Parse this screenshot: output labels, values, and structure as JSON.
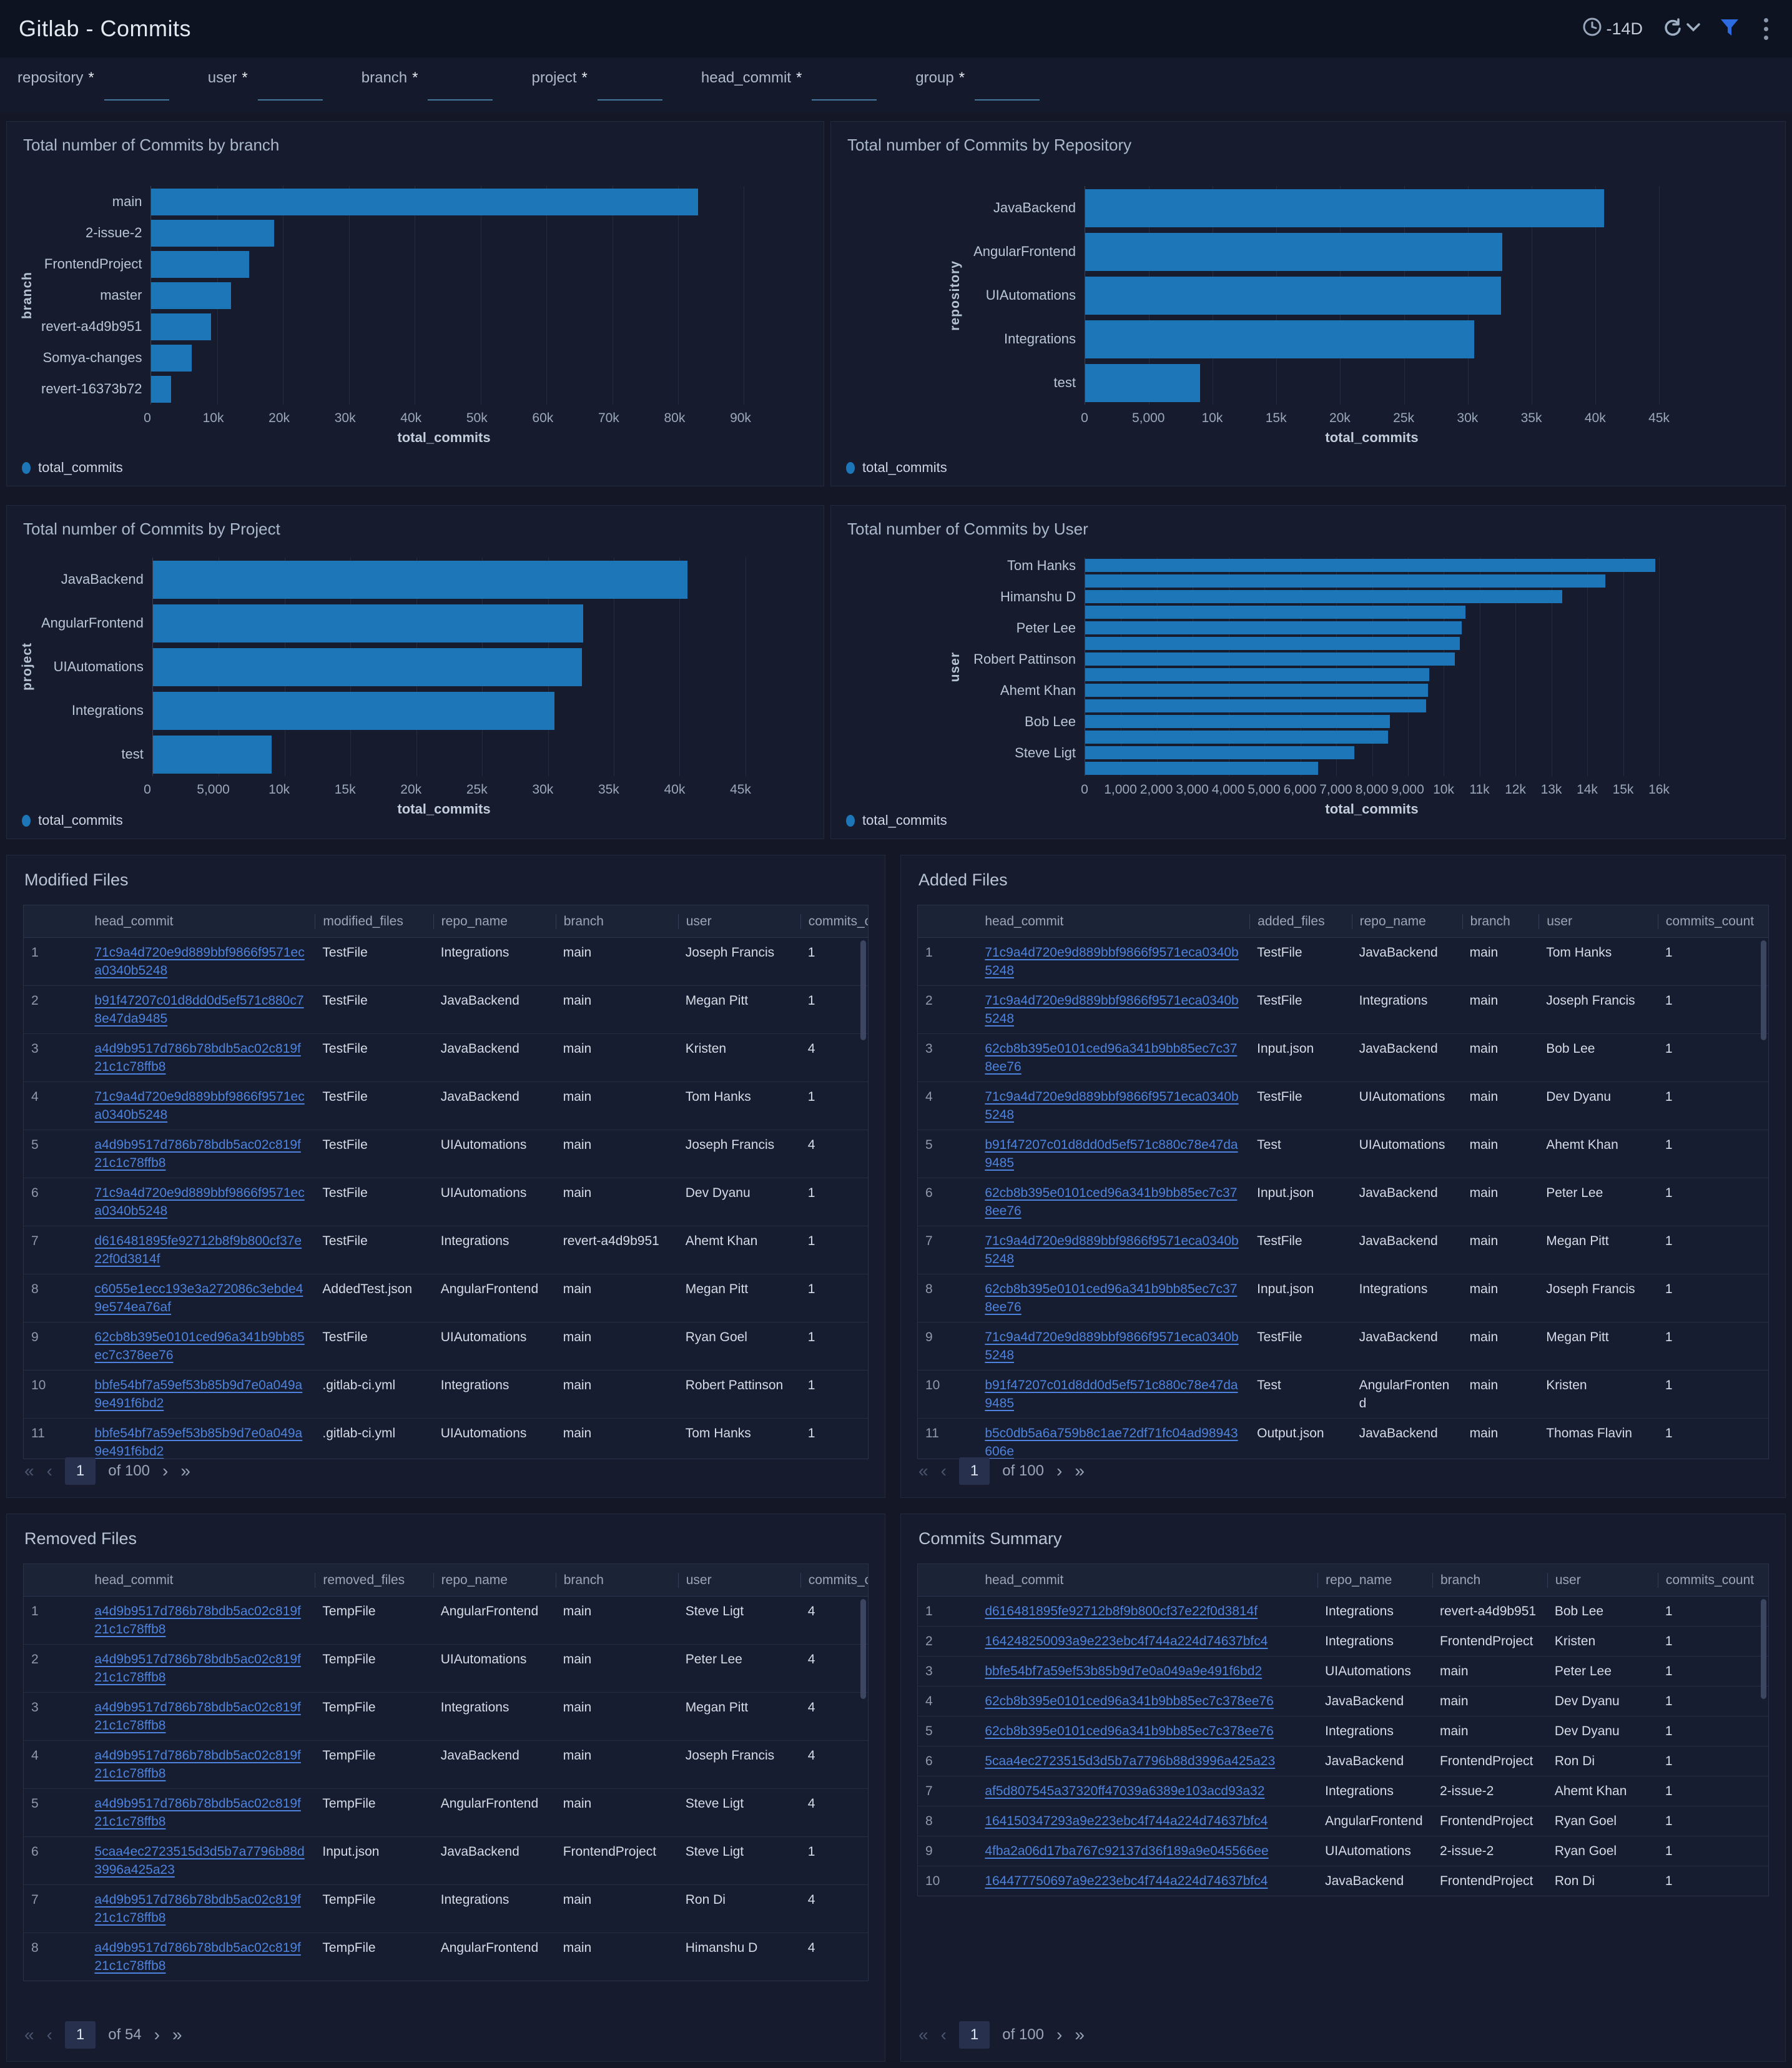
{
  "header": {
    "title": "Gitlab - Commits",
    "time_range": "-14D"
  },
  "filters": [
    {
      "label": "repository",
      "required": "*",
      "value": ""
    },
    {
      "label": "user",
      "required": "*",
      "value": ""
    },
    {
      "label": "branch",
      "required": "*",
      "value": ""
    },
    {
      "label": "project",
      "required": "*",
      "value": ""
    },
    {
      "label": "head_commit",
      "required": "*",
      "value": ""
    },
    {
      "label": "group",
      "required": "*",
      "value": ""
    }
  ],
  "accent_colors": {
    "bar": "#1c76b7",
    "link": "#4d82dd",
    "filter_icon": "#2d6ce0"
  },
  "chart_data": [
    {
      "type": "bar",
      "title": "Total number of Commits by branch",
      "xlabel": "total_commits",
      "ylabel": "branch",
      "legend": "total_commits",
      "orientation": "horizontal",
      "grid": true,
      "xlim": [
        0,
        90000
      ],
      "categories": [
        "main",
        "2-issue-2",
        "FrontendProject",
        "master",
        "revert-a4d9b951",
        "Somya-changes",
        "revert-16373b72"
      ],
      "values": [
        83000,
        18600,
        14800,
        12100,
        9100,
        6100,
        3000
      ],
      "tick_labels": [
        "0",
        "10k",
        "20k",
        "30k",
        "40k",
        "50k",
        "60k",
        "70k",
        "80k",
        "90k"
      ],
      "tick_values": [
        0,
        10000,
        20000,
        30000,
        40000,
        50000,
        60000,
        70000,
        80000,
        90000
      ]
    },
    {
      "type": "bar",
      "title": "Total number of Commits by Repository",
      "xlabel": "total_commits",
      "ylabel": "repository",
      "legend": "total_commits",
      "orientation": "horizontal",
      "grid": true,
      "xlim": [
        0,
        45000
      ],
      "categories": [
        "JavaBackend",
        "AngularFrontend",
        "UIAutomations",
        "Integrations",
        "test"
      ],
      "values": [
        40700,
        32700,
        32600,
        30500,
        9000
      ],
      "tick_labels": [
        "0",
        "5,000",
        "10k",
        "15k",
        "20k",
        "25k",
        "30k",
        "35k",
        "40k",
        "45k"
      ],
      "tick_values": [
        0,
        5000,
        10000,
        15000,
        20000,
        25000,
        30000,
        35000,
        40000,
        45000
      ]
    },
    {
      "type": "bar",
      "title": "Total number of Commits by Project",
      "xlabel": "total_commits",
      "ylabel": "project",
      "legend": "total_commits",
      "orientation": "horizontal",
      "grid": true,
      "xlim": [
        0,
        45000
      ],
      "categories": [
        "JavaBackend",
        "AngularFrontend",
        "UIAutomations",
        "Integrations",
        "test"
      ],
      "values": [
        40600,
        32700,
        32600,
        30500,
        9000
      ],
      "tick_labels": [
        "0",
        "5,000",
        "10k",
        "15k",
        "20k",
        "25k",
        "30k",
        "35k",
        "40k",
        "45k"
      ],
      "tick_values": [
        0,
        5000,
        10000,
        15000,
        20000,
        25000,
        30000,
        35000,
        40000,
        45000
      ]
    },
    {
      "type": "bar",
      "title": "Total number of Commits by User",
      "xlabel": "total_commits",
      "ylabel": "user",
      "legend": "total_commits",
      "orientation": "horizontal",
      "grid": true,
      "xlim": [
        0,
        16000
      ],
      "categories": [
        "Tom Hanks",
        "",
        "Himanshu D",
        "",
        "Peter Lee",
        "",
        "Robert Pattinson",
        "",
        "Ahemt Khan",
        "",
        "Bob Lee",
        "",
        "Steve Ligt",
        ""
      ],
      "values": [
        15900,
        14500,
        13300,
        10600,
        10500,
        10450,
        10300,
        9600,
        9550,
        9500,
        8500,
        8450,
        7500,
        6500
      ],
      "tick_labels": [
        "0",
        "1,000",
        "2,000",
        "3,000",
        "4,000",
        "5,000",
        "6,000",
        "7,000",
        "8,000",
        "9,000",
        "10k",
        "11k",
        "12k",
        "13k",
        "14k",
        "15k",
        "16k"
      ],
      "tick_values": [
        0,
        1000,
        2000,
        3000,
        4000,
        5000,
        6000,
        7000,
        8000,
        9000,
        10000,
        11000,
        12000,
        13000,
        14000,
        15000,
        16000
      ]
    }
  ],
  "tables": {
    "modified": {
      "title": "Modified Files",
      "columns": [
        "head_commit",
        "modified_files",
        "repo_name",
        "branch",
        "user",
        "commits_count"
      ],
      "rows": [
        [
          "71c9a4d720e9d889bbf9866f9571eca0340b5248",
          "TestFile",
          "Integrations",
          "main",
          "Joseph Francis",
          "1"
        ],
        [
          "b91f47207c01d8dd0d5ef571c880c78e47da9485",
          "TestFile",
          "JavaBackend",
          "main",
          "Megan Pitt",
          "1"
        ],
        [
          "a4d9b9517d786b78bdb5ac02c819f21c1c78ffb8",
          "TestFile",
          "JavaBackend",
          "main",
          "Kristen",
          "4"
        ],
        [
          "71c9a4d720e9d889bbf9866f9571eca0340b5248",
          "TestFile",
          "JavaBackend",
          "main",
          "Tom Hanks",
          "1"
        ],
        [
          "a4d9b9517d786b78bdb5ac02c819f21c1c78ffb8",
          "TestFile",
          "UIAutomations",
          "main",
          "Joseph Francis",
          "4"
        ],
        [
          "71c9a4d720e9d889bbf9866f9571eca0340b5248",
          "TestFile",
          "UIAutomations",
          "main",
          "Dev Dyanu",
          "1"
        ],
        [
          "d616481895fe92712b8f9b800cf37e22f0d3814f",
          "TestFile",
          "Integrations",
          "revert-a4d9b951",
          "Ahemt Khan",
          "1"
        ],
        [
          "c6055e1ecc193e3a272086c3ebde49e574ea76af",
          "AddedTest.json",
          "AngularFrontend",
          "main",
          "Megan Pitt",
          "1"
        ],
        [
          "62cb8b395e0101ced96a341b9bb85ec7c378ee76",
          "TestFile",
          "UIAutomations",
          "main",
          "Ryan Goel",
          "1"
        ],
        [
          "bbfe54bf7a59ef53b85b9d7e0a049a9e491f6bd2",
          ".gitlab-ci.yml",
          "Integrations",
          "main",
          "Robert Pattinson",
          "1"
        ],
        [
          "bbfe54bf7a59ef53b85b9d7e0a049a9e491f6bd2",
          ".gitlab-ci.yml",
          "UIAutomations",
          "main",
          "Tom Hanks",
          "1"
        ]
      ],
      "pagination": {
        "page": "1",
        "of_label": "of",
        "total": "100"
      }
    },
    "added": {
      "title": "Added Files",
      "columns": [
        "head_commit",
        "added_files",
        "repo_name",
        "branch",
        "user",
        "commits_count"
      ],
      "rows": [
        [
          "71c9a4d720e9d889bbf9866f9571eca0340b5248",
          "TestFile",
          "JavaBackend",
          "main",
          "Tom Hanks",
          "1"
        ],
        [
          "71c9a4d720e9d889bbf9866f9571eca0340b5248",
          "TestFile",
          "Integrations",
          "main",
          "Joseph Francis",
          "1"
        ],
        [
          "62cb8b395e0101ced96a341b9bb85ec7c378ee76",
          "Input.json",
          "JavaBackend",
          "main",
          "Bob Lee",
          "1"
        ],
        [
          "71c9a4d720e9d889bbf9866f9571eca0340b5248",
          "TestFile",
          "UIAutomations",
          "main",
          "Dev Dyanu",
          "1"
        ],
        [
          "b91f47207c01d8dd0d5ef571c880c78e47da9485",
          "Test",
          "UIAutomations",
          "main",
          "Ahemt Khan",
          "1"
        ],
        [
          "62cb8b395e0101ced96a341b9bb85ec7c378ee76",
          "Input.json",
          "JavaBackend",
          "main",
          "Peter Lee",
          "1"
        ],
        [
          "71c9a4d720e9d889bbf9866f9571eca0340b5248",
          "TestFile",
          "JavaBackend",
          "main",
          "Megan Pitt",
          "1"
        ],
        [
          "62cb8b395e0101ced96a341b9bb85ec7c378ee76",
          "Input.json",
          "Integrations",
          "main",
          "Joseph Francis",
          "1"
        ],
        [
          "71c9a4d720e9d889bbf9866f9571eca0340b5248",
          "TestFile",
          "JavaBackend",
          "main",
          "Megan Pitt",
          "1"
        ],
        [
          "b91f47207c01d8dd0d5ef571c880c78e47da9485",
          "Test",
          "AngularFrontend",
          "main",
          "Kristen",
          "1"
        ],
        [
          "b5c0db5a6a759b8c1ae72df71fc04ad98943606e",
          "Output.json",
          "JavaBackend",
          "main",
          "Thomas Flavin",
          "1"
        ]
      ],
      "pagination": {
        "page": "1",
        "of_label": "of",
        "total": "100"
      }
    },
    "removed": {
      "title": "Removed Files",
      "columns": [
        "head_commit",
        "removed_files",
        "repo_name",
        "branch",
        "user",
        "commits_count"
      ],
      "rows": [
        [
          "a4d9b9517d786b78bdb5ac02c819f21c1c78ffb8",
          "TempFile",
          "AngularFrontend",
          "main",
          "Steve Ligt",
          "4"
        ],
        [
          "a4d9b9517d786b78bdb5ac02c819f21c1c78ffb8",
          "TempFile",
          "UIAutomations",
          "main",
          "Peter Lee",
          "4"
        ],
        [
          "a4d9b9517d786b78bdb5ac02c819f21c1c78ffb8",
          "TempFile",
          "Integrations",
          "main",
          "Megan Pitt",
          "4"
        ],
        [
          "a4d9b9517d786b78bdb5ac02c819f21c1c78ffb8",
          "TempFile",
          "JavaBackend",
          "main",
          "Joseph Francis",
          "4"
        ],
        [
          "a4d9b9517d786b78bdb5ac02c819f21c1c78ffb8",
          "TempFile",
          "AngularFrontend",
          "main",
          "Steve Ligt",
          "4"
        ],
        [
          "5caa4ec2723515d3d5b7a7796b88d3996a425a23",
          "Input.json",
          "JavaBackend",
          "FrontendProject",
          "Steve Ligt",
          "1"
        ],
        [
          "a4d9b9517d786b78bdb5ac02c819f21c1c78ffb8",
          "TempFile",
          "Integrations",
          "main",
          "Ron Di",
          "4"
        ],
        [
          "a4d9b9517d786b78bdb5ac02c819f21c1c78ffb8",
          "TempFile",
          "AngularFrontend",
          "main",
          "Himanshu D",
          "4"
        ]
      ],
      "pagination": {
        "page": "1",
        "of_label": "of",
        "total": "54"
      }
    },
    "summary": {
      "title": "Commits Summary",
      "columns": [
        "head_commit",
        "repo_name",
        "branch",
        "user",
        "commits_count"
      ],
      "rows": [
        [
          "d616481895fe92712b8f9b800cf37e22f0d3814f",
          "Integrations",
          "revert-a4d9b951",
          "Bob Lee",
          "1"
        ],
        [
          "164248250093a9e223ebc4f744a224d74637bfc4",
          "Integrations",
          "FrontendProject",
          "Kristen",
          "1"
        ],
        [
          "bbfe54bf7a59ef53b85b9d7e0a049a9e491f6bd2",
          "UIAutomations",
          "main",
          "Peter Lee",
          "1"
        ],
        [
          "62cb8b395e0101ced96a341b9bb85ec7c378ee76",
          "JavaBackend",
          "main",
          "Dev Dyanu",
          "1"
        ],
        [
          "62cb8b395e0101ced96a341b9bb85ec7c378ee76",
          "Integrations",
          "main",
          "Dev Dyanu",
          "1"
        ],
        [
          "5caa4ec2723515d3d5b7a7796b88d3996a425a23",
          "JavaBackend",
          "FrontendProject",
          "Ron Di",
          "1"
        ],
        [
          "af5d807545a37320ff47039a6389e103acd93a32",
          "Integrations",
          "2-issue-2",
          "Ahemt Khan",
          "1"
        ],
        [
          "164150347293a9e223ebc4f744a224d74637bfc4",
          "AngularFrontend",
          "FrontendProject",
          "Ryan Goel",
          "1"
        ],
        [
          "4fba2a06d17ba767c92137d36f189a9e045566ee",
          "UIAutomations",
          "2-issue-2",
          "Ryan Goel",
          "1"
        ],
        [
          "164477750697a9e223ebc4f744a224d74637bfc4",
          "JavaBackend",
          "FrontendProject",
          "Ron Di",
          "1"
        ]
      ],
      "pagination": {
        "page": "1",
        "of_label": "of",
        "total": "100"
      }
    }
  },
  "pagination_glyphs": {
    "first": "«",
    "prev": "‹",
    "next": "›",
    "last": "»"
  }
}
